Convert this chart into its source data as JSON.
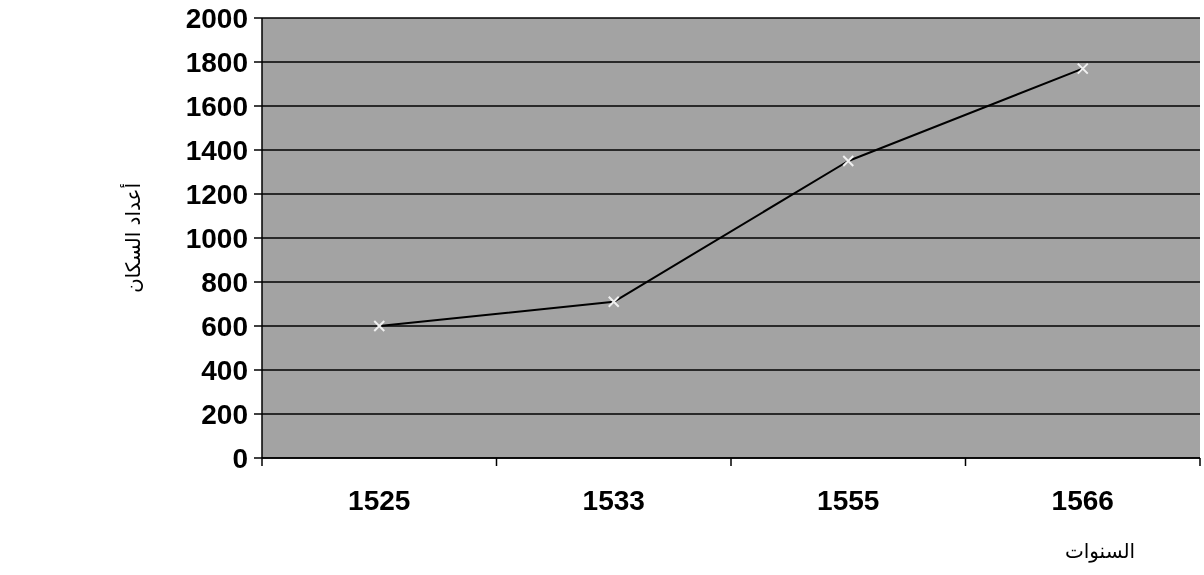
{
  "chart_data": {
    "type": "line",
    "xlabel": "السنوات",
    "ylabel": "أعداد السكان",
    "categories": [
      "1525",
      "1533",
      "1555",
      "1566"
    ],
    "series": [
      {
        "color": "#000000",
        "values": [
          600,
          710,
          1350,
          1770
        ]
      }
    ],
    "ylim": [
      0,
      2000
    ],
    "yticks": [
      0,
      200,
      400,
      600,
      800,
      1000,
      1200,
      1400,
      1600,
      1800,
      2000
    ],
    "grid": "y",
    "marker": "cross",
    "line_style": "solid"
  }
}
